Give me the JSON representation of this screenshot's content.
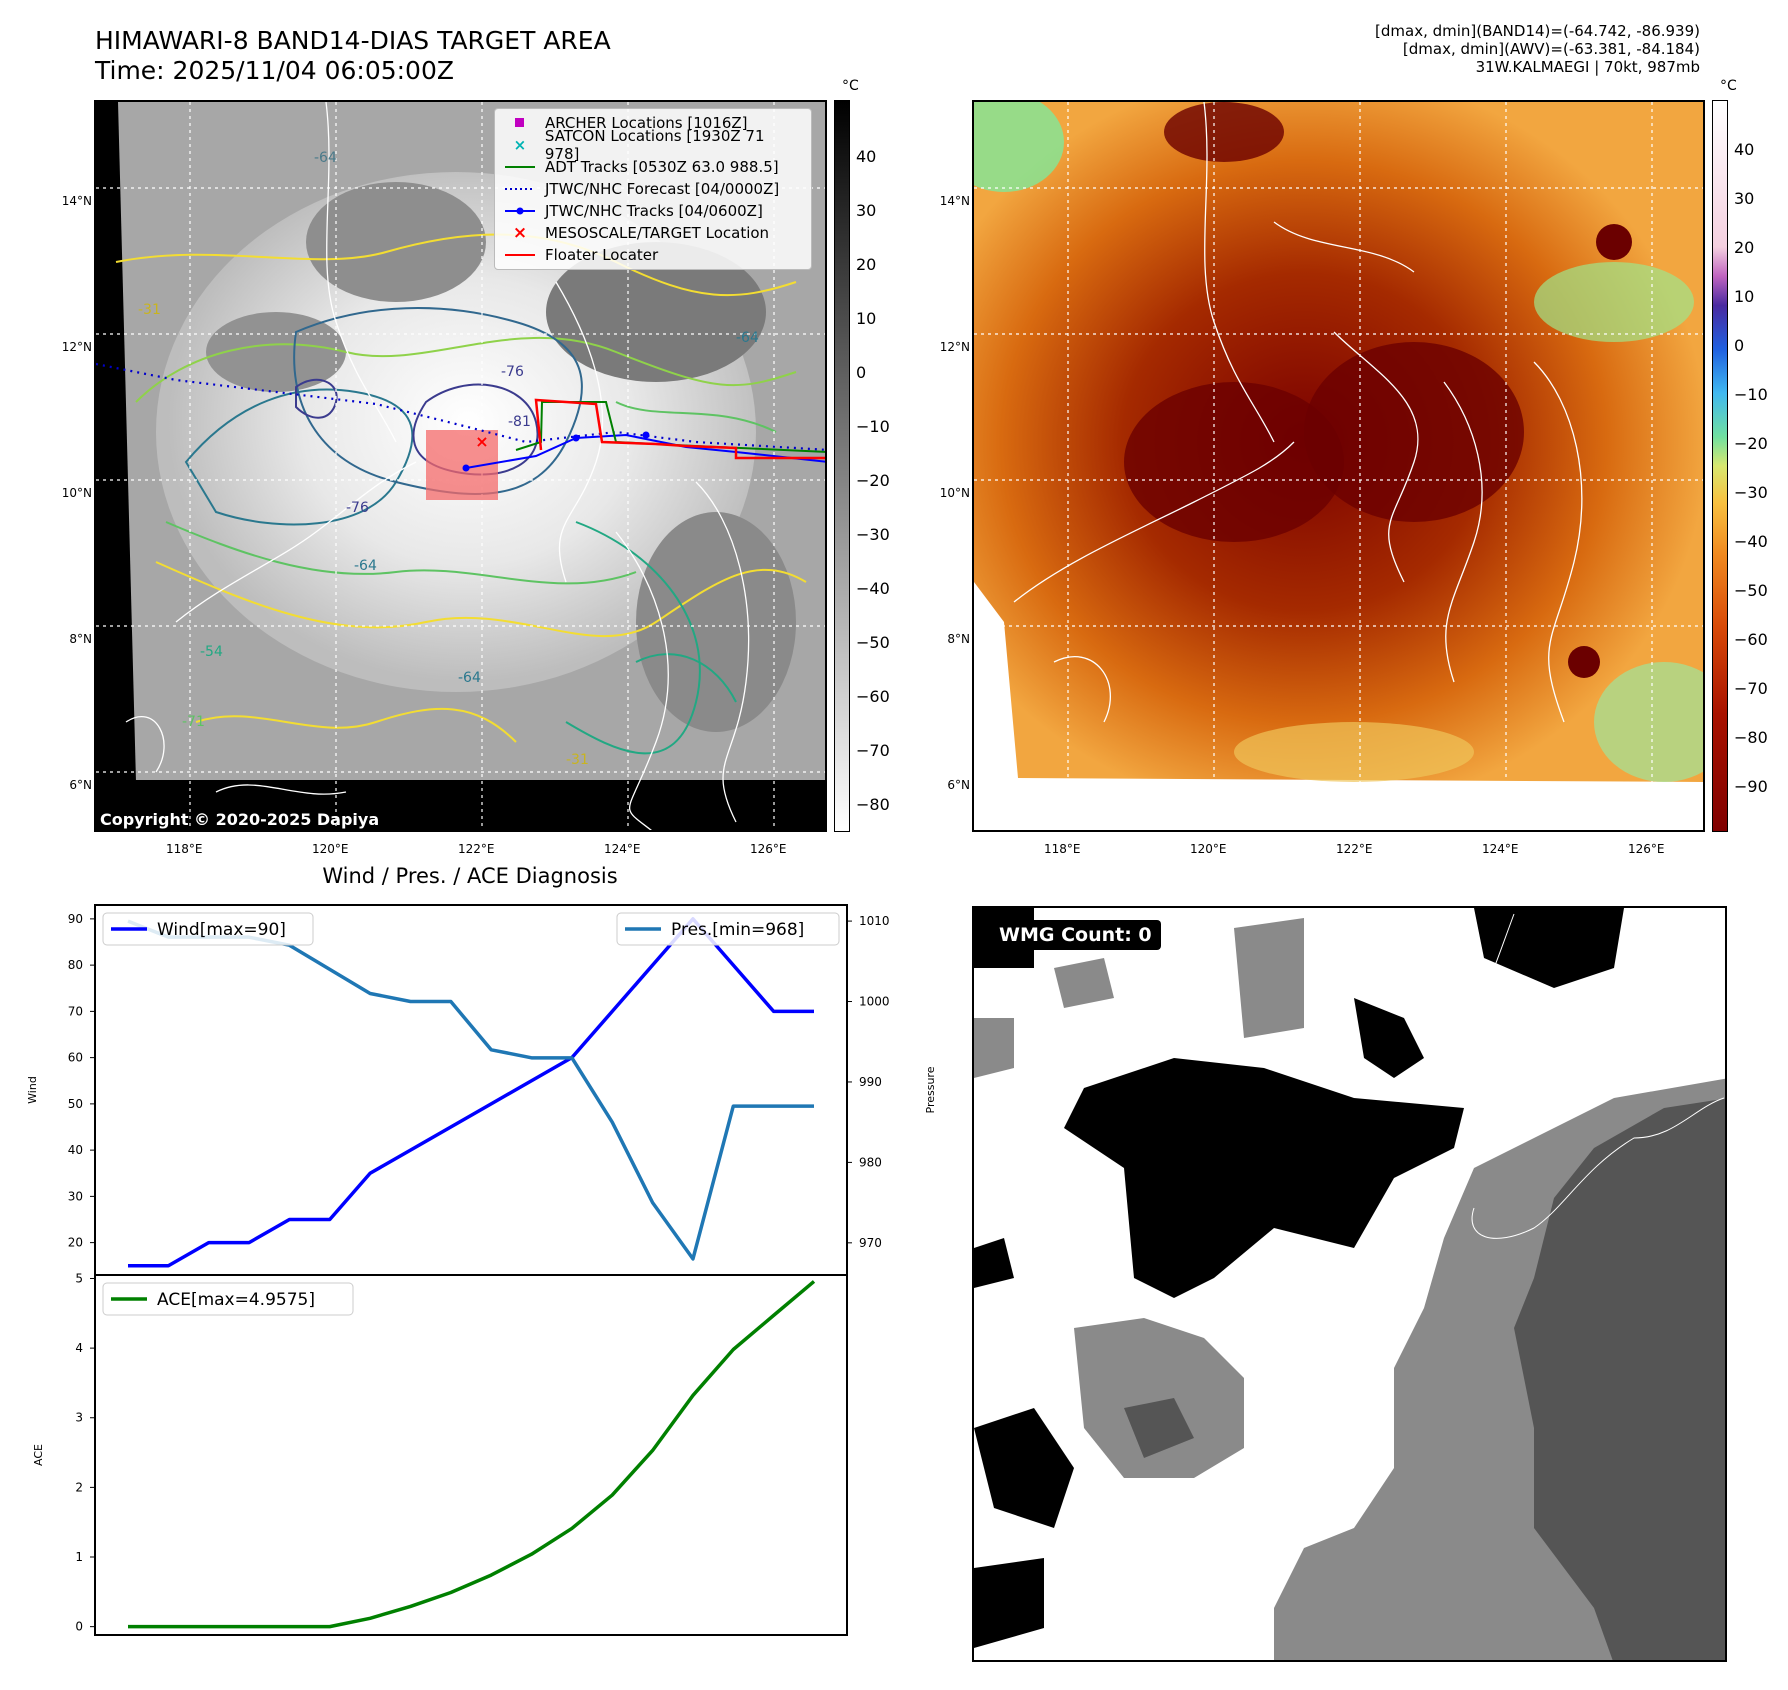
{
  "header": {
    "title": "HIMAWARI-8 BAND14-DIAS TARGET AREA",
    "time": "Time: 2025/11/04 06:05:00Z",
    "meta_line1": "[dmax, dmin](BAND14)=(-64.742, -86.939)",
    "meta_line2": "[dmax, dmin](AWV)=(-63.381, -84.184)",
    "meta_line3": "31W.KALMAEGI | 70kt, 987mb"
  },
  "map_axes": {
    "lat_labels": [
      "14°N",
      "12°N",
      "10°N",
      "8°N",
      "6°N"
    ],
    "lon_labels": [
      "118°E",
      "120°E",
      "122°E",
      "124°E",
      "126°E"
    ]
  },
  "ir_panel": {
    "legend": [
      {
        "label": "ARCHER Locations [1016Z]",
        "color": "#c000c0",
        "symbol": "square"
      },
      {
        "label": "SATCON Locations [1930Z 71 978]",
        "color": "#00b3b3",
        "symbol": "x"
      },
      {
        "label": "ADT Tracks [0530Z 63.0 988.5]",
        "color": "#008000",
        "symbol": "line"
      },
      {
        "label": "JTWC/NHC Forecast [04/0000Z]",
        "color": "#0000cc",
        "symbol": "dotted"
      },
      {
        "label": "JTWC/NHC Tracks [04/0600Z]",
        "color": "#0000ff",
        "symbol": "dotline"
      },
      {
        "label": "MESOSCALE/TARGET Location",
        "color": "#ff0000",
        "symbol": "x"
      },
      {
        "label": "Floater Locater",
        "color": "#ff0000",
        "symbol": "line"
      }
    ],
    "contour_labels": [
      "-64",
      "-76",
      "-81",
      "-76",
      "-64",
      "-54",
      "-31",
      "-31",
      "-64",
      "-71",
      "-64"
    ],
    "copyright": "Copyright © 2020-2025 Dapiya",
    "colorbar_unit": "°C",
    "colorbar_ticks": [
      "40",
      "30",
      "20",
      "10",
      "0",
      "−10",
      "−20",
      "−30",
      "−40",
      "−50",
      "−60",
      "−70",
      "−80"
    ]
  },
  "awv_panel": {
    "colorbar_unit": "°C",
    "colorbar_ticks": [
      "40",
      "30",
      "20",
      "10",
      "0",
      "−10",
      "−20",
      "−30",
      "−40",
      "−50",
      "−60",
      "−70",
      "−80",
      "−90"
    ]
  },
  "chart_data": [
    {
      "type": "line",
      "title": "Wind / Pres. / ACE Diagnosis",
      "xlabel": "",
      "ylabel": "Wind",
      "ylabel2": "Pressure",
      "ylim": [
        13,
        93
      ],
      "y2lim": [
        966,
        1012
      ],
      "yticks": [
        "90",
        "80",
        "70",
        "60",
        "50",
        "40",
        "30",
        "20"
      ],
      "y2ticks": [
        "1010",
        "1000",
        "990",
        "980",
        "970"
      ],
      "series": [
        {
          "name": "Wind[max=90]",
          "color": "#0000ff",
          "axis": "left",
          "values": [
            15,
            15,
            20,
            20,
            25,
            25,
            35,
            40,
            45,
            50,
            55,
            60,
            70,
            80,
            90,
            80,
            70,
            70
          ]
        },
        {
          "name": "Pres.[min=968]",
          "color": "#1f77b4",
          "axis": "right",
          "values": [
            1010,
            1008,
            1008,
            1008,
            1007,
            1004,
            1001,
            1000,
            1000,
            994,
            993,
            993,
            985,
            975,
            968,
            987,
            987,
            987
          ]
        }
      ]
    },
    {
      "type": "line",
      "title": "",
      "xlabel": "",
      "ylabel": "ACE",
      "ylim": [
        -0.12,
        5.05
      ],
      "yticks": [
        "5",
        "4",
        "3",
        "2",
        "1",
        "0"
      ],
      "series": [
        {
          "name": "ACE[max=4.9575]",
          "color": "#008000",
          "values": [
            0,
            0,
            0,
            0,
            0,
            0,
            0.12,
            0.29,
            0.49,
            0.74,
            1.04,
            1.41,
            1.89,
            2.53,
            3.32,
            3.98,
            4.47,
            4.9575
          ]
        }
      ]
    }
  ],
  "wmg_panel": {
    "count_label": "WMG Count: 0"
  }
}
